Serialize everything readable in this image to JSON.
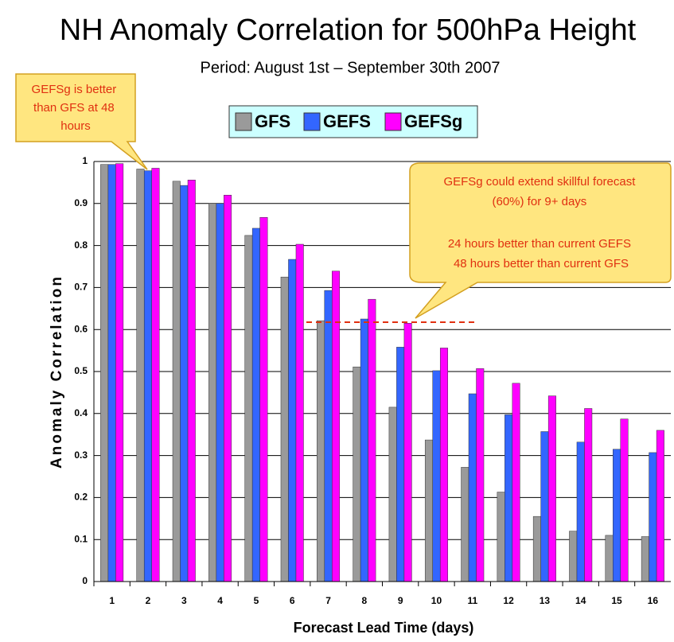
{
  "chart_data": {
    "type": "bar",
    "title": "NH Anomaly Correlation for 500hPa Height",
    "subtitle": "Period: August 1st – September 30th 2007",
    "x_label": "Forecast Lead Time (days)",
    "y_label": "Anomaly Correlation",
    "annotations": [
      [
        "GEFSg is better",
        "than GFS at 48",
        "hours"
      ],
      [
        "GEFSg could extend skillful forecast",
        "(60%) for 9+ days",
        "24 hours better than current GEFS",
        "48 hours better than current GFS"
      ]
    ],
    "categories": [
      "1",
      "2",
      "3",
      "4",
      "5",
      "6",
      "7",
      "8",
      "9",
      "10",
      "11",
      "12",
      "13",
      "14",
      "15",
      "16"
    ],
    "series": [
      {
        "name": "GFS",
        "color": "#9a9a9a",
        "values": [
          0.993,
          0.982,
          0.953,
          0.9,
          0.824,
          0.725,
          0.621,
          0.511,
          0.415,
          0.337,
          0.272,
          0.213,
          0.155,
          0.12,
          0.11,
          0.107
        ]
      },
      {
        "name": "GEFS",
        "color": "#3366ff",
        "values": [
          0.993,
          0.978,
          0.943,
          0.9,
          0.841,
          0.767,
          0.693,
          0.625,
          0.558,
          0.502,
          0.447,
          0.397,
          0.357,
          0.332,
          0.315,
          0.307
        ]
      },
      {
        "name": "GEFSg",
        "color": "#ff00ff",
        "values": [
          0.995,
          0.984,
          0.956,
          0.92,
          0.867,
          0.803,
          0.739,
          0.672,
          0.615,
          0.556,
          0.507,
          0.472,
          0.442,
          0.412,
          0.387,
          0.36
        ]
      }
    ],
    "ylim": [
      0,
      1
    ],
    "yticks": [
      0,
      0.1,
      0.2,
      0.3,
      0.4,
      0.5,
      0.6,
      0.7,
      0.8,
      0.9,
      1
    ],
    "grid": true
  }
}
